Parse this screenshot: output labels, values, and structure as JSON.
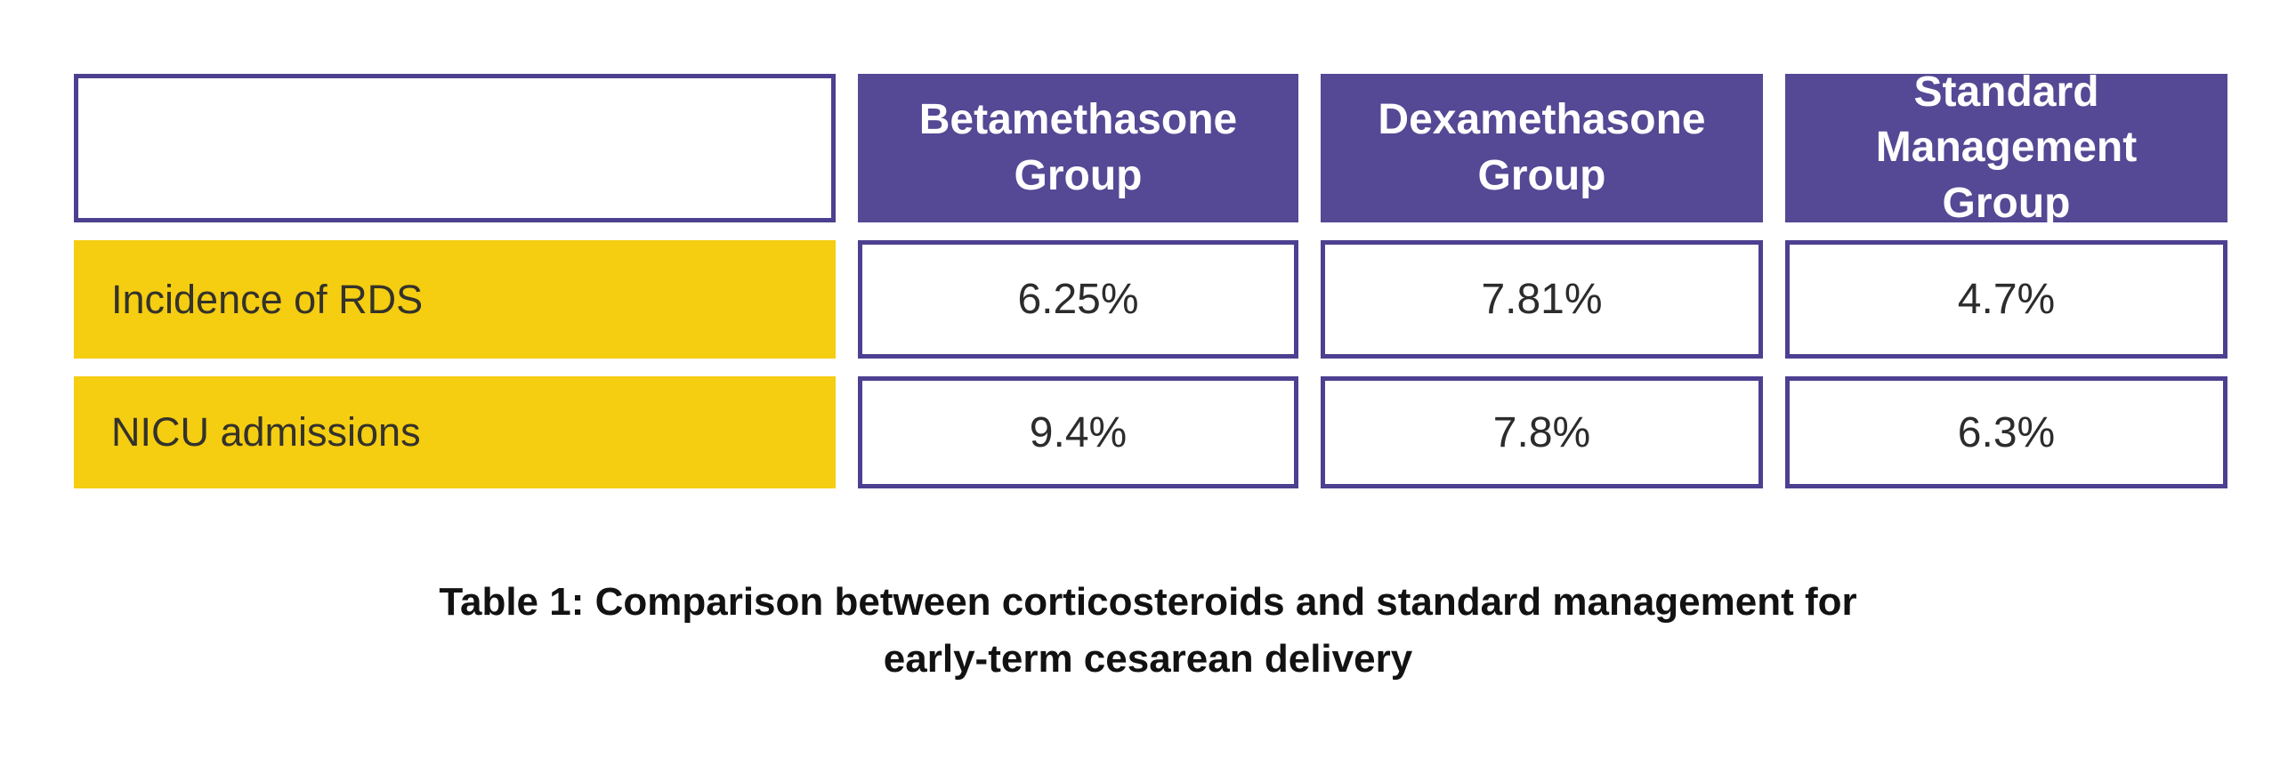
{
  "chart_data": {
    "type": "table",
    "title": "Table 1: Comparison between corticosteroids and standard management for early-term cesarean delivery",
    "columns": [
      "",
      "Betamethasone Group",
      "Dexamethasone Group",
      "Standard Management Group"
    ],
    "rows": [
      {
        "label": "Incidence of RDS",
        "values": [
          "6.25%",
          "7.81%",
          "4.7%"
        ]
      },
      {
        "label": "NICU admissions",
        "values": [
          "9.4%",
          "7.8%",
          "6.3%"
        ]
      }
    ],
    "layout": {
      "header_position": "top",
      "row_label_position": "left",
      "gridlines": "separated-cells"
    }
  },
  "caption": {
    "line1": "Table 1: Comparison between corticosteroids and standard management for",
    "line2": "early-term cesarean delivery"
  },
  "colors": {
    "header_fill": "#554894",
    "cell_border": "#4c4090",
    "row_label_fill": "#f5cd11",
    "header_text": "#ffffff",
    "row_label_text": "#34322b",
    "value_text": "#2c2c2c",
    "caption_text": "#121212",
    "background": "#ffffff"
  }
}
